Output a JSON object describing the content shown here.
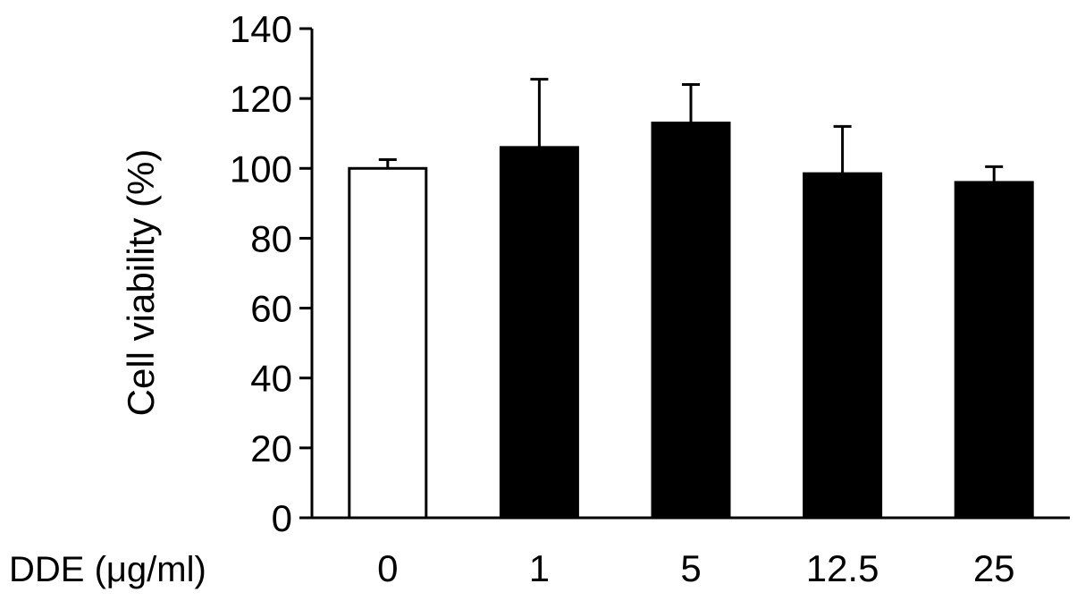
{
  "chart_data": {
    "type": "bar",
    "title": "",
    "ylabel": "Cell viability (%)",
    "xlabel": "DDE (μg/ml)",
    "categories": [
      "0",
      "1",
      "5",
      "12.5",
      "25"
    ],
    "values": [
      100,
      106,
      113,
      98.5,
      96
    ],
    "errors": [
      2.5,
      19.5,
      11,
      13.5,
      4.5
    ],
    "bar_fills": [
      "#ffffff",
      "#000000",
      "#000000",
      "#000000",
      "#000000"
    ],
    "ylim": [
      0,
      140
    ],
    "yticks": [
      "0",
      "20",
      "40",
      "60",
      "80",
      "100",
      "120",
      "140"
    ],
    "grid": false
  }
}
